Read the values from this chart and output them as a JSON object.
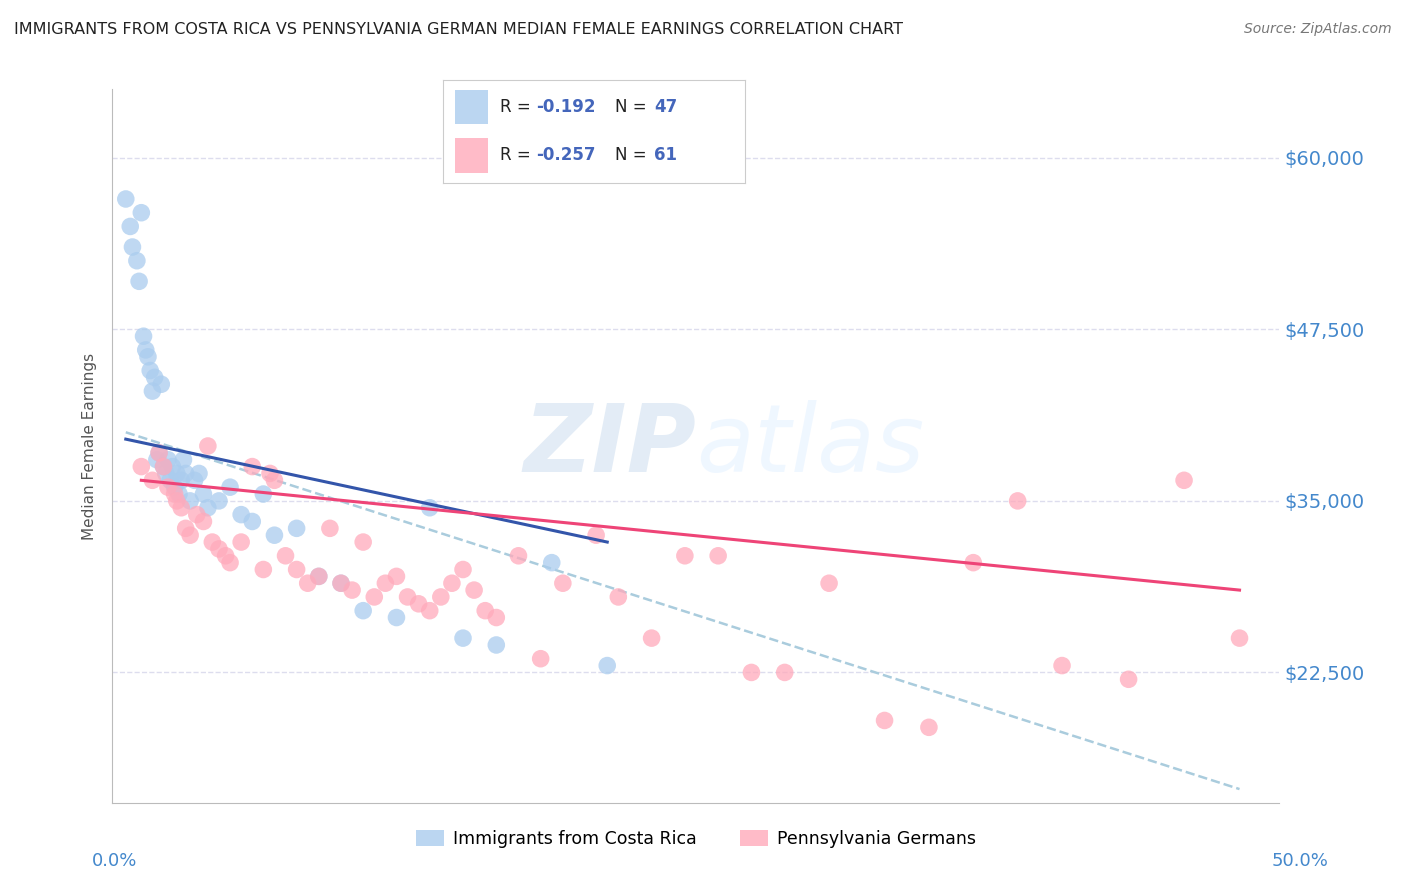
{
  "title": "IMMIGRANTS FROM COSTA RICA VS PENNSYLVANIA GERMAN MEDIAN FEMALE EARNINGS CORRELATION CHART",
  "source": "Source: ZipAtlas.com",
  "ylabel": "Median Female Earnings",
  "xtick_left_label": "0.0%",
  "xtick_right_label": "50.0%",
  "ytick_labels": [
    "$22,500",
    "$35,000",
    "$47,500",
    "$60,000"
  ],
  "ytick_values": [
    22500,
    35000,
    47500,
    60000
  ],
  "ylim": [
    13000,
    65000
  ],
  "xlim": [
    -0.003,
    0.523
  ],
  "legend_blue_r": "-0.192",
  "legend_blue_n": "47",
  "legend_pink_r": "-0.257",
  "legend_pink_n": "61",
  "legend_label_blue": "Immigrants from Costa Rica",
  "legend_label_pink": "Pennsylvania Germans",
  "blue_color": "#AACCEE",
  "pink_color": "#FFAABB",
  "trendline_blue_color": "#3355AA",
  "trendline_pink_color": "#EE4477",
  "trendline_dashed_color": "#AACCDD",
  "bg_color": "#FFFFFF",
  "grid_color": "#DDDDEE",
  "title_color": "#222222",
  "yaxis_right_color": "#4488CC",
  "legend_text_color": "#222222",
  "legend_value_color": "#4466BB",
  "blue_scatter_x": [
    0.003,
    0.005,
    0.006,
    0.008,
    0.009,
    0.01,
    0.011,
    0.012,
    0.013,
    0.014,
    0.015,
    0.016,
    0.017,
    0.018,
    0.019,
    0.02,
    0.021,
    0.022,
    0.023,
    0.024,
    0.025,
    0.026,
    0.027,
    0.028,
    0.029,
    0.03,
    0.032,
    0.034,
    0.036,
    0.038,
    0.04,
    0.045,
    0.05,
    0.055,
    0.06,
    0.065,
    0.07,
    0.08,
    0.09,
    0.1,
    0.11,
    0.125,
    0.14,
    0.155,
    0.17,
    0.195,
    0.22
  ],
  "blue_scatter_y": [
    57000,
    55000,
    53500,
    52500,
    51000,
    56000,
    47000,
    46000,
    45500,
    44500,
    43000,
    44000,
    38000,
    38500,
    43500,
    37500,
    37000,
    38000,
    36500,
    37500,
    36000,
    37000,
    35500,
    36500,
    38000,
    37000,
    35000,
    36500,
    37000,
    35500,
    34500,
    35000,
    36000,
    34000,
    33500,
    35500,
    32500,
    33000,
    29500,
    29000,
    27000,
    26500,
    34500,
    25000,
    24500,
    30500,
    23000
  ],
  "pink_scatter_x": [
    0.01,
    0.015,
    0.018,
    0.02,
    0.022,
    0.025,
    0.026,
    0.028,
    0.03,
    0.032,
    0.035,
    0.038,
    0.04,
    0.042,
    0.045,
    0.048,
    0.05,
    0.055,
    0.06,
    0.065,
    0.068,
    0.07,
    0.075,
    0.08,
    0.085,
    0.09,
    0.095,
    0.1,
    0.105,
    0.11,
    0.115,
    0.12,
    0.125,
    0.13,
    0.135,
    0.14,
    0.145,
    0.15,
    0.155,
    0.16,
    0.165,
    0.17,
    0.18,
    0.19,
    0.2,
    0.215,
    0.225,
    0.24,
    0.255,
    0.27,
    0.285,
    0.3,
    0.32,
    0.345,
    0.365,
    0.385,
    0.405,
    0.425,
    0.455,
    0.48,
    0.505
  ],
  "pink_scatter_y": [
    37500,
    36500,
    38500,
    37500,
    36000,
    35500,
    35000,
    34500,
    33000,
    32500,
    34000,
    33500,
    39000,
    32000,
    31500,
    31000,
    30500,
    32000,
    37500,
    30000,
    37000,
    36500,
    31000,
    30000,
    29000,
    29500,
    33000,
    29000,
    28500,
    32000,
    28000,
    29000,
    29500,
    28000,
    27500,
    27000,
    28000,
    29000,
    30000,
    28500,
    27000,
    26500,
    31000,
    23500,
    29000,
    32500,
    28000,
    25000,
    31000,
    31000,
    22500,
    22500,
    29000,
    19000,
    18500,
    30500,
    35000,
    23000,
    22000,
    36500,
    25000
  ],
  "blue_trend_x0": 0.003,
  "blue_trend_x1": 0.22,
  "blue_trend_y0": 39500,
  "blue_trend_y1": 32000,
  "pink_trend_x0": 0.01,
  "pink_trend_x1": 0.505,
  "pink_trend_y0": 36500,
  "pink_trend_y1": 28500,
  "dashed_trend_x0": 0.003,
  "dashed_trend_x1": 0.505,
  "dashed_trend_y0": 40000,
  "dashed_trend_y1": 14000
}
